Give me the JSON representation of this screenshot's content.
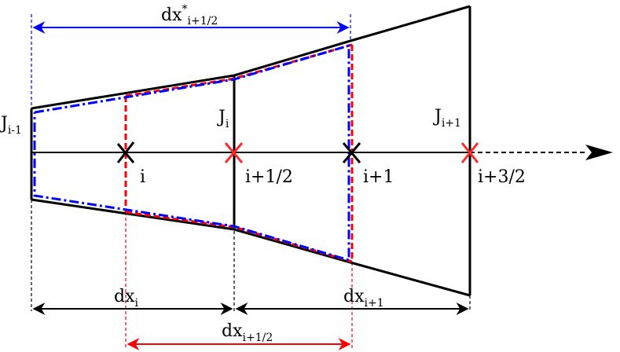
{
  "labels": {
    "dx_star_main": "dx",
    "dx_star_sup": "*",
    "dx_star_sub": "i+1/2",
    "J_im1_main": "J",
    "J_im1_sub": "i-1",
    "J_i_main": "J",
    "J_i_sub": "i",
    "J_ip1_main": "J",
    "J_ip1_sub": "i+1",
    "node_i": "i",
    "node_i_half": "i+1/2",
    "node_ip1": "i+1",
    "node_i_3half": "i+3/2",
    "dx_i_main": "dx",
    "dx_i_sub": "i",
    "dx_ip1_main": "dx",
    "dx_ip1_sub": "i+1",
    "dx_half_main": "dx",
    "dx_half_sub": "i+1/2"
  },
  "colors": {
    "outline": "#000000",
    "blue": "#0000ff",
    "red": "#ff0000"
  }
}
